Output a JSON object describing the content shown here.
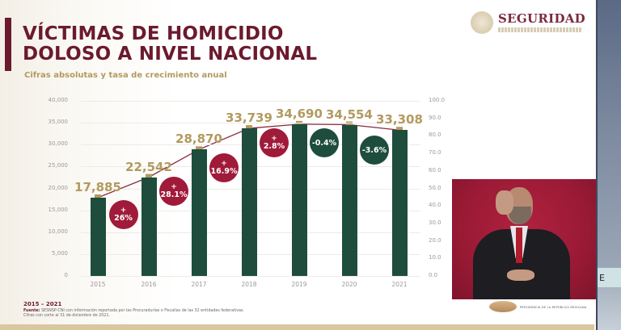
{
  "slide": {
    "title": "VÍCTIMAS DE HOMICIDIO\nDOLOSO A NIVEL NACIONAL",
    "subtitle": "Cifras absolutas y tasa de crecimiento anual",
    "logo": {
      "text": "SEGURIDAD",
      "icon": "mexico-coat-of-arms-icon"
    },
    "footer": {
      "period": "2015 – 2021",
      "source_label": "Fuente:",
      "source_text": "SESNSP-CNI con información reportada por las Procuradurías o Fiscalías de las 32 entidades federativas.",
      "cutoff_text": "Cifras con corte al 31 de diciembre de 2021."
    }
  },
  "interpreter": {
    "caption": "PRESIDENCIA DE LA REPÚBLICA MEXICANA"
  },
  "side_panel": {
    "visible_char": "E"
  },
  "colors": {
    "title": "#6b1a2e",
    "subtitle_gold": "#b29a5f",
    "bar_green": "#1e4d3d",
    "line_maroon": "#8b2a3e",
    "marker_gold": "#b29a5f",
    "bubble_positive": "#a01a3a",
    "bubble_negative": "#1e4d3d"
  },
  "chart_data": {
    "type": "bar",
    "title": "VÍCTIMAS DE HOMICIDIO DOLOSO A NIVEL NACIONAL",
    "subtitle": "Cifras absolutas y tasa de crecimiento anual",
    "categories": [
      "2015",
      "2016",
      "2017",
      "2018",
      "2019",
      "2020",
      "2021"
    ],
    "series": [
      {
        "name": "Víctimas de homicidio doloso",
        "type": "bar",
        "axis": "left",
        "values": [
          17885,
          22542,
          28870,
          33739,
          34690,
          34554,
          33308
        ],
        "labels": [
          "17,885",
          "22,542",
          "28,870",
          "33,739",
          "34,690",
          "34,554",
          "33,308"
        ]
      },
      {
        "name": "Línea de tendencia",
        "type": "line",
        "axis": "right",
        "values": [
          44.7,
          56.4,
          72.2,
          84.3,
          86.7,
          86.4,
          83.3
        ]
      }
    ],
    "growth_rates": [
      {
        "between": "2015-2016",
        "label": "26%",
        "sign": "+"
      },
      {
        "between": "2016-2017",
        "label": "28.1%",
        "sign": "+"
      },
      {
        "between": "2017-2018",
        "label": "16.9%",
        "sign": "+"
      },
      {
        "between": "2018-2019",
        "label": "2.8%",
        "sign": "+"
      },
      {
        "between": "2019-2020",
        "label": "-0.4%",
        "sign": ""
      },
      {
        "between": "2020-2021",
        "label": "-3.6%",
        "sign": ""
      }
    ],
    "y_left": {
      "ylim": [
        0,
        40000
      ],
      "ticks": [
        "0",
        "5,000",
        "10,000",
        "15,000",
        "20,000",
        "25,000",
        "30,000",
        "35,000",
        "40,000"
      ]
    },
    "y_right": {
      "ylim": [
        0,
        100
      ],
      "ticks": [
        "0.0",
        "10.0",
        "20.0",
        "30.0",
        "40.0",
        "50.0",
        "60.0",
        "70.0",
        "80.0",
        "90.0",
        "100.0"
      ]
    },
    "xlabel": "",
    "ylabel": "",
    "grid": true,
    "legend": "none"
  }
}
